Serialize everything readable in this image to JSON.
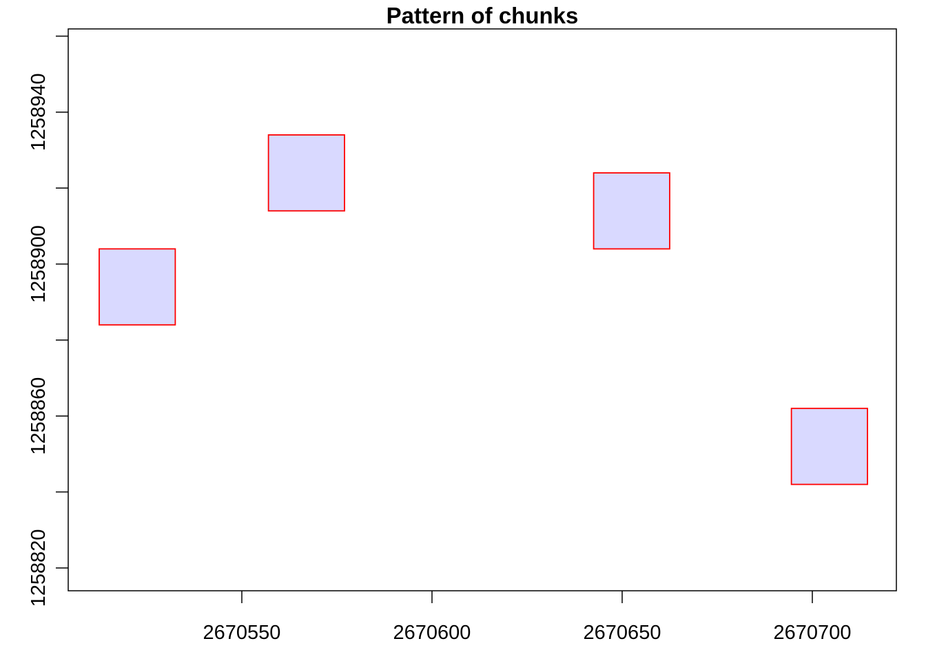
{
  "chart_data": {
    "type": "rect",
    "title": "Pattern of chunks",
    "rects": [
      {
        "xmin": 2670512.5,
        "xmax": 2670532.5,
        "ymin": 1258884,
        "ymax": 1258904
      },
      {
        "xmin": 2670557,
        "xmax": 2670577,
        "ymin": 1258914,
        "ymax": 1258934
      },
      {
        "xmin": 2670642.5,
        "xmax": 2670662.5,
        "ymin": 1258904,
        "ymax": 1258924
      },
      {
        "xmin": 2670694.5,
        "xmax": 2670714.5,
        "ymin": 1258842,
        "ymax": 1258862
      }
    ],
    "fill": "#d9d9ff",
    "stroke": "#ff0000",
    "xlim": [
      2670504.35,
      2670722.1
    ],
    "ylim": [
      1258814,
      1258961.9
    ],
    "xticks": [
      2670550,
      2670600,
      2670650,
      2670700
    ],
    "yticks": [
      1258820,
      1258860,
      1258900,
      1258940
    ],
    "yminor_ticks": [
      1258840,
      1258880,
      1258920,
      1258960
    ]
  }
}
